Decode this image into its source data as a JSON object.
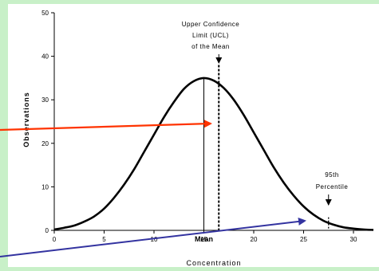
{
  "chart_data": {
    "type": "line",
    "xlabel": "Concentration",
    "ylabel": "Observations",
    "xlim": [
      0,
      32
    ],
    "ylim": [
      0,
      50
    ],
    "x_ticks": [
      0,
      5,
      10,
      15,
      20,
      25,
      30
    ],
    "y_ticks": [
      0,
      10,
      20,
      30,
      40,
      50
    ],
    "series": [
      {
        "x": [
          0,
          1,
          2,
          3,
          4,
          5,
          6,
          7,
          8,
          9,
          10,
          11,
          12,
          13,
          14,
          15,
          16,
          17,
          18,
          19,
          20,
          21,
          22,
          23,
          24,
          25,
          26,
          27,
          28,
          29,
          30,
          31,
          32
        ],
        "y": [
          0.2,
          0.6,
          1.1,
          2.0,
          3.2,
          5.0,
          7.5,
          10.5,
          14.0,
          18.0,
          22.0,
          26.0,
          29.5,
          32.5,
          34.3,
          35.0,
          34.4,
          32.7,
          30.0,
          26.5,
          22.5,
          18.5,
          14.5,
          11.0,
          8.0,
          5.5,
          3.6,
          2.2,
          1.3,
          0.7,
          0.4,
          0.2,
          0.1
        ]
      }
    ],
    "mean_x": 15,
    "mean_label": "Mean",
    "ucl_x": 16.5,
    "ucl_label_lines": [
      "Upper Confidence",
      "Limit (UCL)",
      "of the Mean"
    ],
    "p95_x": 27.5,
    "p95_label_lines": [
      "95th",
      "Percentile"
    ],
    "grid": false,
    "legend": "none"
  },
  "colors": {
    "background": "#c8f0c8",
    "plot_background": "#ffffff",
    "curve": "#000000",
    "red_arrow": "#ff3300",
    "blue_arrow": "#3333a0"
  }
}
